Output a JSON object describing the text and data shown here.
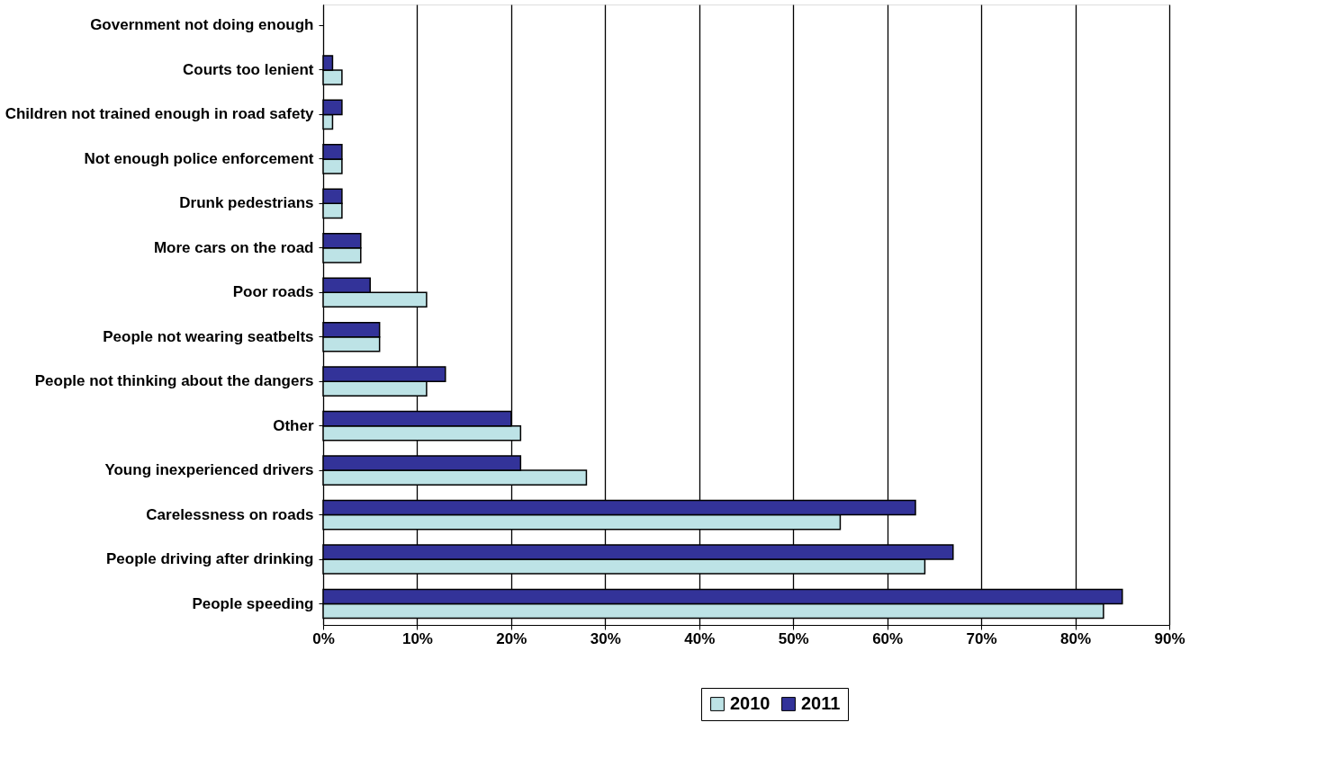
{
  "chart_data": {
    "type": "bar",
    "orientation": "horizontal",
    "categories": [
      "Government not doing enough",
      "Courts too lenient",
      "Children not trained enough in road safety",
      "Not enough police enforcement",
      "Drunk pedestrians",
      "More cars on the road",
      "Poor roads",
      "People not wearing seatbelts",
      "People not thinking about the dangers",
      "Other",
      "Young inexperienced drivers",
      "Carelessness on roads",
      "People driving after drinking",
      "People speeding"
    ],
    "series": [
      {
        "name": "2010",
        "color": "#bde3e6",
        "values": [
          null,
          2,
          1,
          2,
          2,
          4,
          11,
          6,
          11,
          21,
          28,
          55,
          64,
          83
        ]
      },
      {
        "name": "2011",
        "color": "#333399",
        "values": [
          null,
          1,
          2,
          2,
          2,
          4,
          5,
          6,
          13,
          20,
          21,
          63,
          67,
          85
        ]
      }
    ],
    "xlim": [
      0,
      90
    ],
    "xticks": [
      {
        "value": 0,
        "label": "0%"
      },
      {
        "value": 10,
        "label": "10%"
      },
      {
        "value": 20,
        "label": "20%"
      },
      {
        "value": 30,
        "label": "30%"
      },
      {
        "value": 40,
        "label": "40%"
      },
      {
        "value": 50,
        "label": "50%"
      },
      {
        "value": 60,
        "label": "60%"
      },
      {
        "value": 70,
        "label": "70%"
      },
      {
        "value": 80,
        "label": "80%"
      },
      {
        "value": 90,
        "label": "90%"
      }
    ],
    "grid": "x",
    "legend": "bottom"
  }
}
